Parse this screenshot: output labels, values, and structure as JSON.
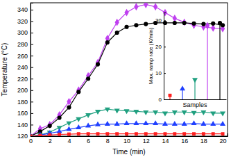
{
  "chart_data": [
    {
      "type": "line",
      "xlabel": "Time (min)",
      "ylabel": "Temperature (°C)",
      "x": [
        0,
        1,
        2,
        3,
        4,
        5,
        6,
        7,
        8,
        9,
        10,
        11,
        12,
        13,
        14,
        15,
        16,
        17,
        18,
        19,
        20
      ],
      "xlim": [
        0,
        20.5
      ],
      "ylim": [
        120,
        352
      ],
      "xticks": [
        0,
        2,
        4,
        6,
        8,
        10,
        12,
        14,
        16,
        18,
        20
      ],
      "yticks": [
        120,
        140,
        160,
        180,
        200,
        220,
        240,
        260,
        280,
        300,
        320,
        340
      ],
      "series": [
        {
          "color": "#c040f0",
          "marker": "diamond",
          "values": [
            120,
            133,
            140,
            157,
            180,
            200,
            225,
            248,
            290,
            318,
            335,
            345,
            349,
            345,
            335,
            325,
            318,
            313,
            310,
            308,
            307
          ]
        },
        {
          "color": "#000000",
          "marker": "circle",
          "values": [
            120,
            128,
            138,
            152,
            170,
            197,
            220,
            245,
            283,
            300,
            310,
            313,
            315,
            317,
            317,
            317,
            317,
            316,
            315,
            316,
            313
          ]
        },
        {
          "color": "#20a080",
          "marker": "triangle-down",
          "values": [
            120,
            122,
            127,
            135,
            143,
            150,
            157,
            163,
            167,
            165,
            164,
            163,
            162,
            162,
            160,
            162,
            162,
            161,
            162,
            160,
            160
          ]
        },
        {
          "color": "#2040ff",
          "marker": "triangle-up",
          "values": [
            120,
            122,
            125,
            128,
            132,
            135,
            138,
            140,
            141,
            141,
            142,
            142,
            142,
            142,
            141,
            141,
            141,
            142,
            141,
            141,
            141
          ]
        },
        {
          "color": "#ff2020",
          "marker": "square",
          "values": [
            120,
            121,
            122,
            123,
            123.5,
            124,
            124,
            124,
            124,
            124,
            124,
            124,
            124,
            124,
            124,
            124,
            124,
            124,
            124,
            124,
            124
          ]
        }
      ]
    },
    {
      "type": "stem",
      "xlabel": "Samples",
      "ylabel": "Max. ramp rate (K/min)",
      "categories": [
        null,
        null,
        null,
        null,
        null
      ],
      "ylim": [
        0,
        33
      ],
      "yticks": [
        0,
        10,
        20,
        30
      ],
      "tick_labels": "y",
      "series": [
        {
          "color": "#ff2020",
          "marker": "square",
          "values": [
            1.5,
            null,
            null,
            null,
            null
          ]
        },
        {
          "color": "#2040ff",
          "marker": "triangle-up",
          "values": [
            null,
            4,
            null,
            null,
            null
          ]
        },
        {
          "color": "#20a080",
          "marker": "triangle-down",
          "values": [
            null,
            null,
            7.5,
            null,
            null
          ]
        },
        {
          "color": "#c040f0",
          "marker": "diamond",
          "values": [
            null,
            null,
            null,
            28,
            null
          ]
        },
        {
          "color": "#000000",
          "marker": "circle",
          "values": [
            null,
            null,
            null,
            null,
            29
          ]
        }
      ]
    }
  ]
}
